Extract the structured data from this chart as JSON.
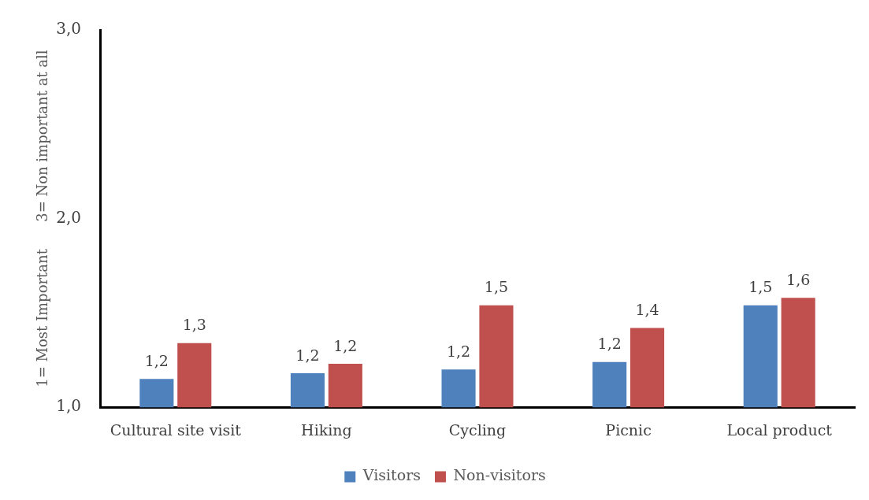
{
  "chart_data": {
    "type": "bar",
    "ylabel": "1= Most Important      3= Non important at all",
    "categories": [
      "Cultural site visit",
      "Hiking",
      "Cycling",
      "Picnic",
      "Local product"
    ],
    "series": [
      {
        "name": "Visitors",
        "color": "#4f81bd",
        "values": [
          1.15,
          1.18,
          1.2,
          1.24,
          1.54
        ],
        "value_labels": [
          "1,2",
          "1,2",
          "1,2",
          "1,2",
          "1,5"
        ]
      },
      {
        "name": "Non-visitors",
        "color": "#c0504d",
        "values": [
          1.34,
          1.23,
          1.54,
          1.42,
          1.58
        ],
        "value_labels": [
          "1,3",
          "1,2",
          "1,5",
          "1,4",
          "1,6"
        ]
      }
    ],
    "ylim": [
      1,
      3
    ],
    "yticks": [
      {
        "value": 1,
        "label": "1,0"
      },
      {
        "value": 2,
        "label": "2,0"
      },
      {
        "value": 3,
        "label": "3,0"
      }
    ],
    "grid": false,
    "legend": "bottom"
  }
}
